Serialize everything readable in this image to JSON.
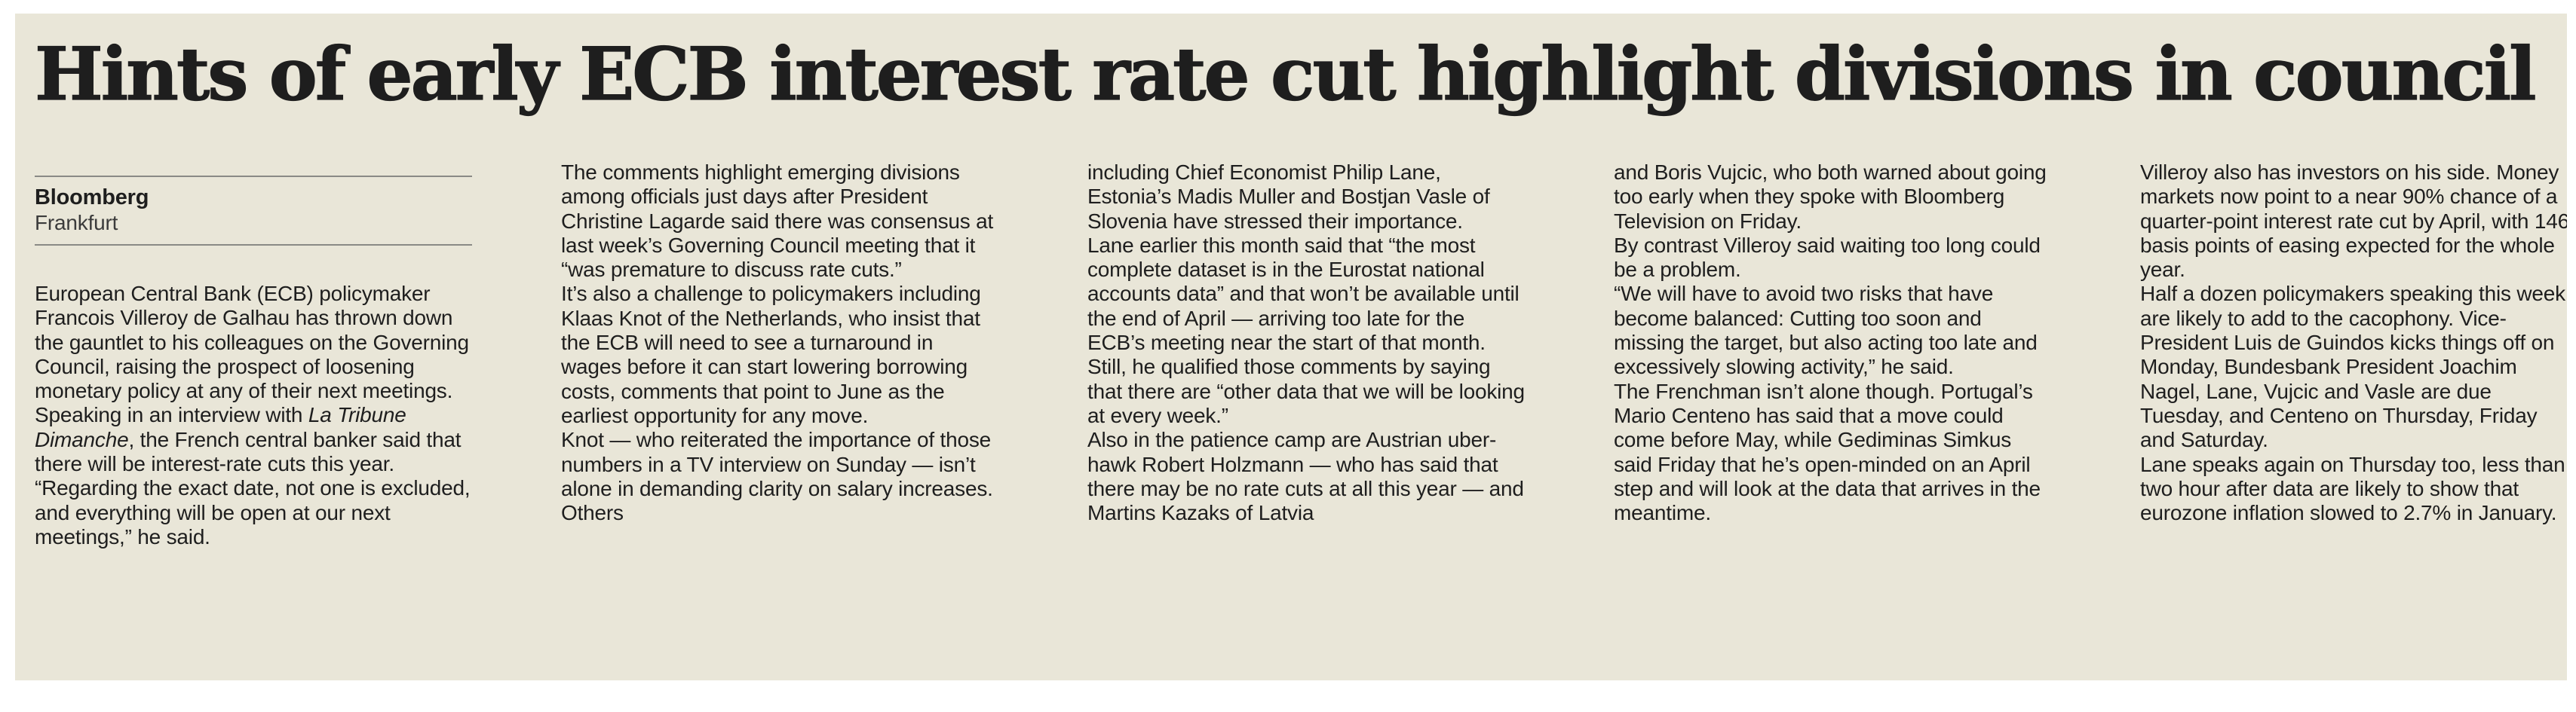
{
  "headline": "Hints of early ECB interest rate cut highlight divisions in council",
  "byline": {
    "source": "Bloomberg",
    "location": "Frankfurt"
  },
  "columns": [
    [
      "European Central Bank (ECB) policymaker Francois Villeroy de Galhau has thrown down the gauntlet to his colleagues on the Governing Council, raising the prospect of loosening monetary policy at any of their next meetings.",
      "Speaking in an interview with La Tribune Dimanche, the French central banker said that there will be interest-rate cuts this year. “Regarding the exact date, not one is excluded, and everything will be open at our next meetings,” he said."
    ],
    [
      "The comments highlight emerging divisions among officials just days after President Christine Lagarde said there was consensus at last week’s Governing Council meeting that it “was premature to discuss rate cuts.”",
      "It’s also a challenge to policymakers including Klaas Knot of the Netherlands, who insist that the ECB will need to see a turnaround in wages before it can start lowering borrowing costs, comments that point to June as the earliest opportunity for any move.",
      "Knot — who reiterated the importance of those numbers in a TV interview on Sunday — isn’t alone in demanding clarity on salary increases. Others"
    ],
    [
      "including Chief Economist Philip Lane, Estonia’s Madis Muller and Bostjan Vasle of Slovenia have stressed their importance.",
      "Lane earlier this month said that “the most complete dataset is in the Eurostat national accounts data” and that won’t be available until the end of April — arriving too late for the ECB’s meeting near the start of that month.",
      "Still, he qualified those comments by saying that there are “other data that we will be looking at every week.”",
      "Also in the patience camp are Austrian uber-hawk Robert Holzmann — who has said that there may be no rate cuts at all this year — and Martins Kazaks of Latvia"
    ],
    [
      "and Boris Vujcic, who both warned about going too early when they spoke with Bloomberg Television on Friday.",
      "By contrast Villeroy said waiting too long could be a problem.",
      "“We will have to avoid two risks that have become balanced: Cutting too soon and missing the target, but also acting too late and excessively slowing activity,” he said.",
      "The Frenchman isn’t alone though. Portugal’s Mario Centeno has said that a move could come before May, while Gediminas Simkus said Friday that he’s open-minded on an April step and will look at the data that arrives in the meantime."
    ],
    [
      "Villeroy also has investors on his side. Money markets now point to a near 90% chance of a quarter-point interest rate cut by April, with 146 basis points of easing expected for the whole year.",
      "Half a dozen policymakers speaking this week are likely to add to the cacophony. Vice-President Luis de Guindos kicks things off on Monday, Bundesbank President Joachim Nagel, Lane, Vujcic and Vasle are due Tuesday, and Centeno on Thursday, Friday and Saturday.",
      "Lane speaks again on Thursday too, less than two hour after data are likely to show that eurozone inflation slowed to 2.7% in January."
    ]
  ],
  "col1_p2_parts": {
    "before": "Speaking in an interview with ",
    "italic": "La Tribune Dimanche",
    "after": ", the French central banker said that there will be interest-rate cuts this year. “Regarding the exact date, not one is excluded, and everything will be open at our next meetings,” he said."
  }
}
